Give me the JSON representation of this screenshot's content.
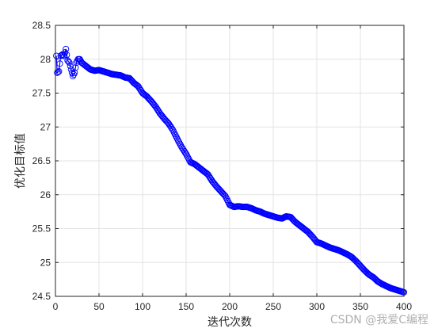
{
  "chart_data": {
    "type": "line",
    "title": "",
    "xlabel": "迭代次数",
    "ylabel": "优化目标值",
    "xlim": [
      0,
      400
    ],
    "ylim": [
      24.5,
      28.5
    ],
    "xticks": [
      0,
      50,
      100,
      150,
      200,
      250,
      300,
      350,
      400
    ],
    "yticks": [
      24.5,
      25,
      25.5,
      26,
      26.5,
      27,
      27.5,
      28,
      28.5
    ],
    "xtick_labels": [
      "0",
      "50",
      "100",
      "150",
      "200",
      "250",
      "300",
      "350",
      "400"
    ],
    "ytick_labels": [
      "24.5",
      "25",
      "25.5",
      "26",
      "26.5",
      "27",
      "27.5",
      "28",
      "28.5"
    ],
    "grid": true,
    "series": [
      {
        "color": "#0000ff",
        "marker": "circle-open",
        "x": [
          1,
          2,
          4,
          6,
          8,
          10,
          12,
          14,
          16,
          18,
          20,
          22,
          24,
          26,
          28,
          30,
          35,
          40,
          45,
          50,
          55,
          60,
          65,
          70,
          75,
          80,
          85,
          90,
          95,
          100,
          105,
          110,
          115,
          120,
          125,
          130,
          135,
          140,
          145,
          150,
          155,
          160,
          165,
          170,
          175,
          180,
          185,
          190,
          195,
          200,
          205,
          210,
          215,
          220,
          225,
          230,
          235,
          240,
          245,
          250,
          255,
          260,
          265,
          270,
          275,
          280,
          285,
          290,
          295,
          300,
          305,
          310,
          315,
          320,
          325,
          330,
          335,
          340,
          345,
          350,
          355,
          360,
          365,
          370,
          375,
          380,
          385,
          390,
          395,
          400
        ],
        "y": [
          28.05,
          27.8,
          27.82,
          28.05,
          28.07,
          28.05,
          28.15,
          27.98,
          27.95,
          27.85,
          27.75,
          27.8,
          27.95,
          28.0,
          28.0,
          27.95,
          27.9,
          27.85,
          27.83,
          27.84,
          27.82,
          27.8,
          27.78,
          27.77,
          27.76,
          27.73,
          27.72,
          27.65,
          27.6,
          27.5,
          27.45,
          27.38,
          27.3,
          27.2,
          27.12,
          27.05,
          26.95,
          26.82,
          26.7,
          26.6,
          26.48,
          26.45,
          26.4,
          26.35,
          26.3,
          26.2,
          26.12,
          26.05,
          25.98,
          25.85,
          25.82,
          25.83,
          25.82,
          25.82,
          25.8,
          25.77,
          25.75,
          25.72,
          25.7,
          25.68,
          25.66,
          25.65,
          25.68,
          25.67,
          25.6,
          25.55,
          25.5,
          25.45,
          25.38,
          25.3,
          25.28,
          25.25,
          25.22,
          25.2,
          25.18,
          25.15,
          25.12,
          25.08,
          25.02,
          24.95,
          24.88,
          24.82,
          24.78,
          24.72,
          24.68,
          24.65,
          24.62,
          24.6,
          24.58,
          24.56
        ]
      }
    ]
  },
  "watermark": "CSDN @我爱C编程"
}
